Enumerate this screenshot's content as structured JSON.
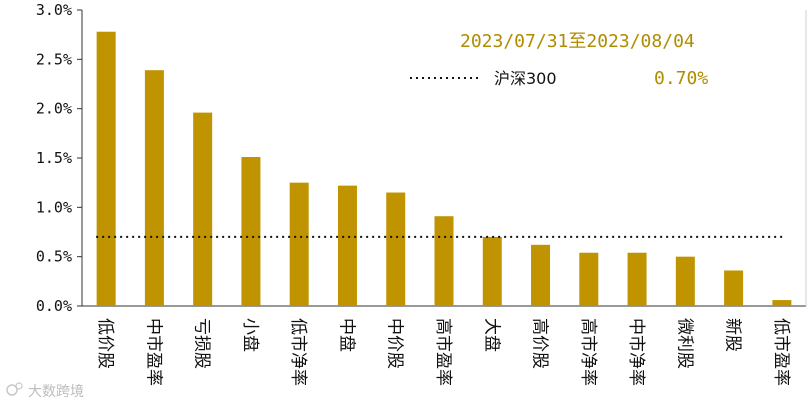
{
  "chart_data": {
    "type": "bar",
    "title": "",
    "xlabel": "",
    "ylabel": "",
    "categories": [
      "低价股",
      "中市盈率",
      "亏损股",
      "小盘",
      "低市净率",
      "中盘",
      "中价股",
      "高市盈率",
      "大盘",
      "高价股",
      "高市净率",
      "中市净率",
      "微利股",
      "新股",
      "低市盈率"
    ],
    "values": [
      2.78,
      2.39,
      1.96,
      1.51,
      1.25,
      1.22,
      1.15,
      0.91,
      0.7,
      0.62,
      0.54,
      0.54,
      0.5,
      0.36,
      0.06
    ],
    "ylim": [
      0,
      3.0
    ],
    "yticks": [
      "0.0%",
      "0.5%",
      "1.0%",
      "1.5%",
      "2.0%",
      "2.5%",
      "3.0%"
    ],
    "ytick_values": [
      0,
      0.5,
      1.0,
      1.5,
      2.0,
      2.5,
      3.0
    ],
    "reference_line": {
      "name": "沪深300",
      "value": 0.7,
      "value_label": "0.70%"
    },
    "annotation": "2023/07/31至2023/08/04",
    "bar_color": "#bf9400",
    "grid": false,
    "legend_position": "top-right"
  },
  "watermark": "大数跨境"
}
